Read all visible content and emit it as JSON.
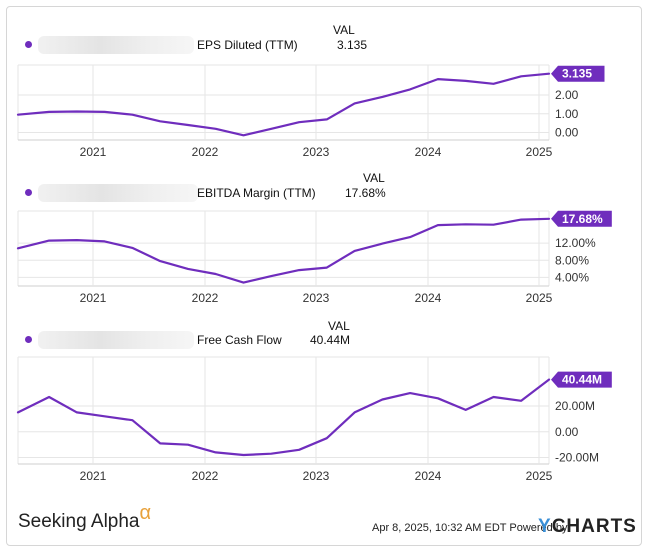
{
  "accent_color": "#6f2dbd",
  "grid_color": "#e6e6e6",
  "val_header": "VAL",
  "footer": {
    "brand": "Seeking Alpha",
    "brand_symbol": "α",
    "timestamp": "Apr 8, 2025, 10:32 AM EDT Powered by",
    "ycharts_y": "Y",
    "ycharts_rest": "CHARTS"
  },
  "chart_data": [
    {
      "type": "line",
      "title": "EPS Diluted (TTM)",
      "current_value": "3.135",
      "x_ticks": [
        "2021",
        "2022",
        "2023",
        "2024",
        "2025"
      ],
      "y_ticks": [
        "0.00",
        "1.00",
        "2.00"
      ],
      "y_tick_values": [
        0,
        1,
        2
      ],
      "ylim": [
        -0.4,
        3.6
      ],
      "xlim": [
        2020.32,
        2025.1
      ],
      "x": [
        2020.32,
        2020.6,
        2020.85,
        2021.1,
        2021.35,
        2021.6,
        2021.85,
        2022.1,
        2022.35,
        2022.6,
        2022.85,
        2023.1,
        2023.35,
        2023.6,
        2023.85,
        2024.1,
        2024.35,
        2024.6,
        2024.85,
        2025.1
      ],
      "values": [
        0.95,
        1.1,
        1.12,
        1.1,
        0.95,
        0.6,
        0.4,
        0.2,
        -0.15,
        0.2,
        0.55,
        0.7,
        1.55,
        1.9,
        2.3,
        2.85,
        2.75,
        2.6,
        3.0,
        3.135
      ]
    },
    {
      "type": "line",
      "title": "EBITDA Margin (TTM)",
      "current_value": "17.68%",
      "x_ticks": [
        "2021",
        "2022",
        "2023",
        "2024",
        "2025"
      ],
      "y_ticks": [
        "4.00%",
        "8.00%",
        "12.00%"
      ],
      "y_tick_values": [
        4,
        8,
        12
      ],
      "ylim": [
        2,
        19.5
      ],
      "xlim": [
        2020.32,
        2025.1
      ],
      "x": [
        2020.32,
        2020.6,
        2020.85,
        2021.1,
        2021.35,
        2021.6,
        2021.85,
        2022.1,
        2022.35,
        2022.6,
        2022.85,
        2023.1,
        2023.35,
        2023.6,
        2023.85,
        2024.1,
        2024.35,
        2024.6,
        2024.85,
        2025.1
      ],
      "values": [
        10.8,
        12.6,
        12.7,
        12.4,
        10.9,
        7.8,
        6.0,
        4.8,
        2.8,
        4.3,
        5.7,
        6.3,
        10.2,
        11.9,
        13.4,
        16.2,
        16.4,
        16.3,
        17.5,
        17.68
      ]
    },
    {
      "type": "line",
      "title": "Free Cash Flow",
      "current_value": "40.44M",
      "x_ticks": [
        "2021",
        "2022",
        "2023",
        "2024",
        "2025"
      ],
      "y_ticks": [
        "-20.00M",
        "0.00",
        "20.00M"
      ],
      "y_tick_values": [
        -20,
        0,
        20
      ],
      "ylim": [
        -25,
        58
      ],
      "xlim": [
        2020.32,
        2025.1
      ],
      "x": [
        2020.32,
        2020.6,
        2020.85,
        2021.1,
        2021.35,
        2021.6,
        2021.85,
        2022.1,
        2022.35,
        2022.6,
        2022.85,
        2023.1,
        2023.35,
        2023.6,
        2023.85,
        2024.1,
        2024.35,
        2024.6,
        2024.85,
        2025.1
      ],
      "values": [
        15,
        27,
        15,
        12,
        9,
        -9,
        -10,
        -16,
        -18,
        -17,
        -14,
        -5,
        15,
        25,
        30,
        26,
        17,
        27,
        24,
        40.44
      ]
    }
  ]
}
